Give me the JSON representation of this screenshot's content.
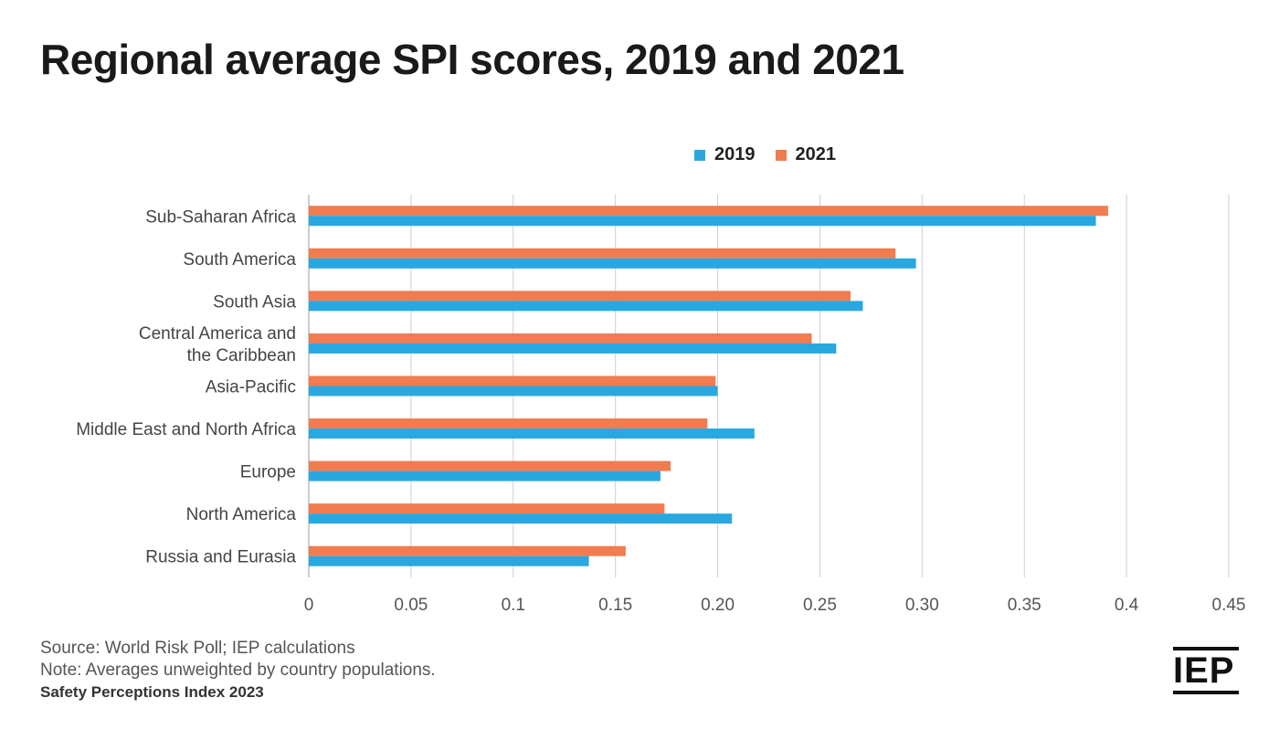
{
  "title": "Regional average SPI scores, 2019 and 2021",
  "legend": [
    {
      "label": "2019",
      "color": "#29a8e0"
    },
    {
      "label": "2021",
      "color": "#f07c50"
    }
  ],
  "footer": {
    "source": "Source: World Risk Poll; IEP calculations",
    "note": "Note: Averages unweighted by country populations.",
    "brand": "Safety Perceptions Index 2023"
  },
  "logo": {
    "text": "IEP"
  },
  "chart_data": {
    "type": "bar",
    "orientation": "horizontal",
    "categories": [
      [
        "Sub-Saharan Africa"
      ],
      [
        "South America"
      ],
      [
        "South Asia"
      ],
      [
        "Central America and",
        "the Caribbean"
      ],
      [
        "Asia-Pacific"
      ],
      [
        "Middle East and North Africa"
      ],
      [
        "Europe"
      ],
      [
        "North America"
      ],
      [
        "Russia and Eurasia"
      ]
    ],
    "series": [
      {
        "name": "2021",
        "color": "#f07c50",
        "values": [
          0.391,
          0.287,
          0.265,
          0.246,
          0.199,
          0.195,
          0.177,
          0.174,
          0.155
        ]
      },
      {
        "name": "2019",
        "color": "#29a8e0",
        "values": [
          0.385,
          0.297,
          0.271,
          0.258,
          0.2,
          0.218,
          0.172,
          0.207,
          0.137
        ]
      }
    ],
    "xlim": [
      0,
      0.45
    ],
    "xticks": [
      "0",
      "0.05",
      "0.1",
      "0.15",
      "0.20",
      "0.25",
      "0.30",
      "0.35",
      "0.4",
      "0.45"
    ],
    "grid": "vertical",
    "legend_position": "top-right"
  }
}
